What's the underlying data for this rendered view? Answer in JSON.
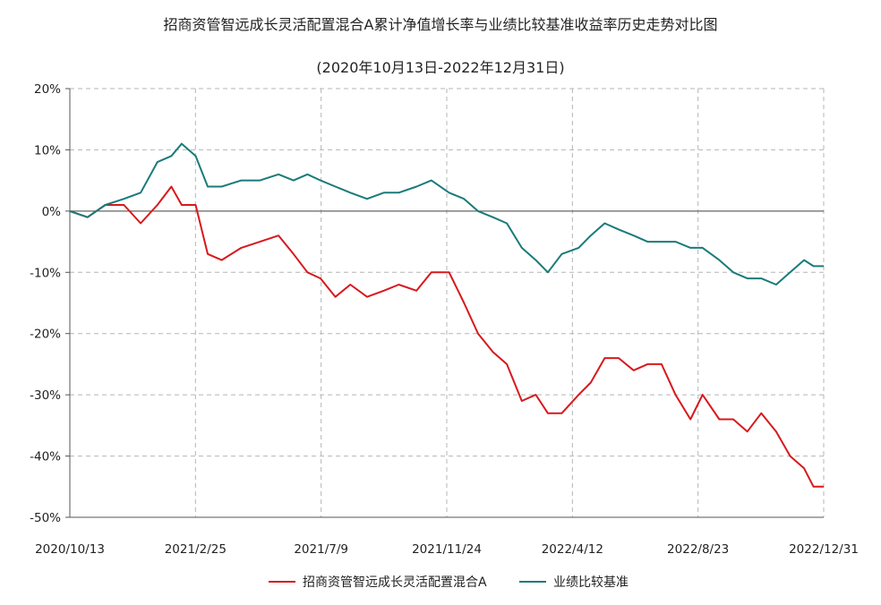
{
  "chart_data": {
    "type": "line",
    "title": "招商资管智远成长灵活配置混合A累计净值增长率与业绩比较基准收益率历史走势对比图",
    "subtitle": "(2020年10月13日-2022年12月31日)",
    "x_tick_labels": [
      "2020/10/13",
      "2021/2/25",
      "2021/7/9",
      "2021/11/24",
      "2022/4/12",
      "2022/8/23",
      "2022/12/31"
    ],
    "y_tick_labels": [
      "20%",
      "10%",
      "0%",
      "-10%",
      "-20%",
      "-30%",
      "-40%",
      "-50%"
    ],
    "ylim": [
      -50,
      20
    ],
    "grid": true,
    "legend_position": "bottom",
    "x": [
      "2020-10-13",
      "2020-11-01",
      "2020-11-20",
      "2020-12-10",
      "2020-12-28",
      "2021-01-15",
      "2021-01-30",
      "2021-02-10",
      "2021-02-25",
      "2021-03-10",
      "2021-03-25",
      "2021-04-15",
      "2021-05-05",
      "2021-05-25",
      "2021-06-10",
      "2021-06-25",
      "2021-07-09",
      "2021-07-25",
      "2021-08-10",
      "2021-08-28",
      "2021-09-15",
      "2021-10-01",
      "2021-10-20",
      "2021-11-05",
      "2021-11-24",
      "2021-12-10",
      "2021-12-25",
      "2022-01-10",
      "2022-01-25",
      "2022-02-10",
      "2022-02-25",
      "2022-03-10",
      "2022-03-25",
      "2022-04-12",
      "2022-04-25",
      "2022-05-10",
      "2022-05-25",
      "2022-06-10",
      "2022-06-25",
      "2022-07-10",
      "2022-07-25",
      "2022-08-10",
      "2022-08-23",
      "2022-09-10",
      "2022-09-25",
      "2022-10-10",
      "2022-10-25",
      "2022-11-10",
      "2022-11-25",
      "2022-12-10",
      "2022-12-20",
      "2022-12-31"
    ],
    "series": [
      {
        "name": "招商资管智远成长灵活配置混合A",
        "color": "#d7191c",
        "values": [
          0,
          -1,
          1,
          1,
          -2,
          1,
          4,
          1,
          1,
          -7,
          -8,
          -6,
          -5,
          -4,
          -7,
          -10,
          -11,
          -14,
          -12,
          -14,
          -13,
          -12,
          -13,
          -10,
          -10,
          -15,
          -20,
          -23,
          -25,
          -31,
          -30,
          -33,
          -33,
          -30,
          -28,
          -24,
          -24,
          -26,
          -25,
          -25,
          -30,
          -34,
          -30,
          -34,
          -34,
          -36,
          -33,
          -36,
          -40,
          -42,
          -45,
          -45
        ]
      },
      {
        "name": "业绩比较基准",
        "color": "#1a7a7a",
        "values": [
          0,
          -1,
          1,
          2,
          3,
          8,
          9,
          11,
          9,
          4,
          4,
          5,
          5,
          6,
          5,
          6,
          5,
          4,
          3,
          2,
          3,
          3,
          4,
          5,
          3,
          2,
          0,
          -1,
          -2,
          -6,
          -8,
          -10,
          -7,
          -6,
          -4,
          -2,
          -3,
          -4,
          -5,
          -5,
          -5,
          -6,
          -6,
          -8,
          -10,
          -11,
          -11,
          -12,
          -10,
          -8,
          -9,
          -9
        ]
      }
    ]
  }
}
